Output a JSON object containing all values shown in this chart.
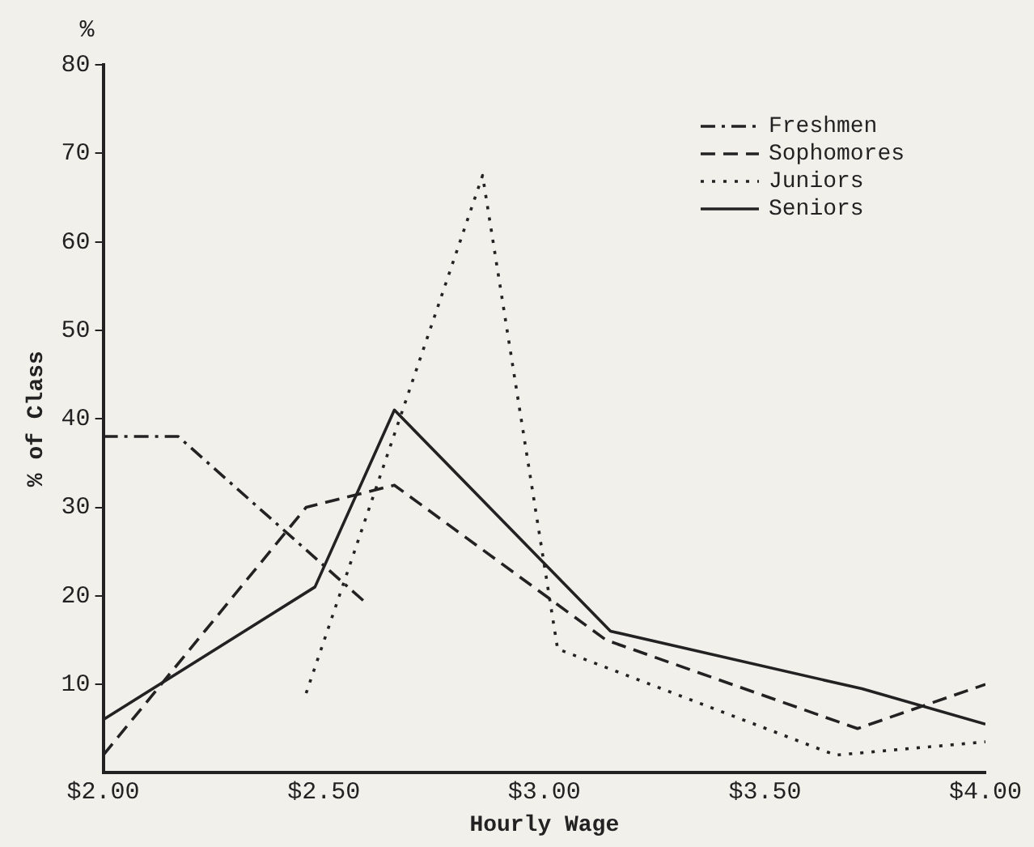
{
  "chart_data": {
    "type": "line",
    "xlabel": "Hourly Wage",
    "ylabel": "% of Class",
    "annotations": [
      "%"
    ],
    "xlim": [
      2,
      4
    ],
    "xticks": [
      {
        "value": 2,
        "label": "$2.00"
      },
      {
        "value": 2.5,
        "label": "$2.50"
      },
      {
        "value": 3,
        "label": "$3.00"
      },
      {
        "value": 3.5,
        "label": "$3.50"
      },
      {
        "value": 4,
        "label": "$4.00"
      }
    ],
    "ylim": [
      0,
      80
    ],
    "yticks": [
      10,
      20,
      30,
      40,
      50,
      60,
      70,
      80
    ],
    "grid": false,
    "legend": "top right",
    "marker": "none",
    "series": [
      {
        "name": "Freshmen",
        "color": "#222222",
        "line_style": "dashdot",
        "x": [
          2.0,
          2.17,
          2.6
        ],
        "values": [
          38,
          38,
          19
        ]
      },
      {
        "name": "Sophomores",
        "color": "#222222",
        "line_style": "dashed",
        "x": [
          2.0,
          2.46,
          2.66,
          3.14,
          3.71,
          4.0
        ],
        "values": [
          2,
          30,
          32.5,
          15,
          5,
          10
        ]
      },
      {
        "name": "Juniors",
        "color": "#222222",
        "line_style": "dotted",
        "x": [
          2.46,
          2.86,
          3.03,
          3.66,
          4.0
        ],
        "values": [
          9,
          67.5,
          14,
          2,
          3.5
        ]
      },
      {
        "name": "Seniors",
        "color": "#222222",
        "line_style": "solid",
        "x": [
          2.0,
          2.48,
          2.66,
          3.15,
          3.72,
          4.0
        ],
        "values": [
          6,
          21,
          41,
          16,
          9.5,
          5.5
        ]
      }
    ]
  }
}
